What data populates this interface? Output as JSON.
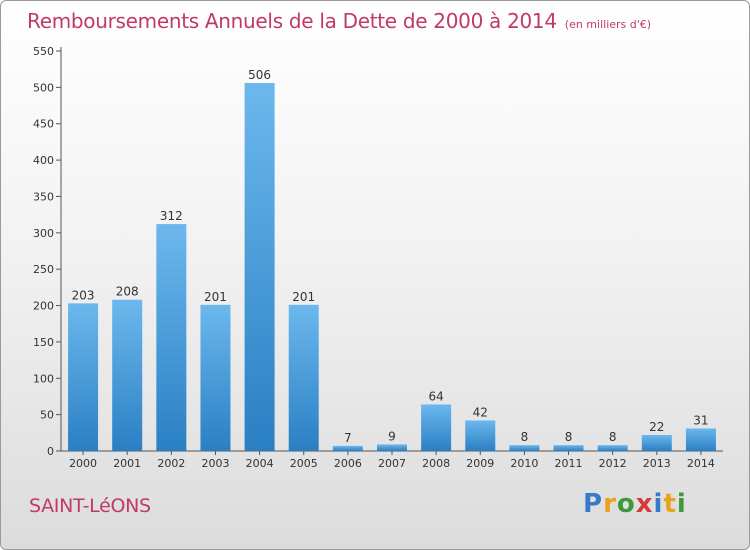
{
  "chart_title": "Remboursements Annuels de la Dette de 2000 à 2014",
  "unit_label": "(en milliers d'€)",
  "commune": "SAINT-LéONS",
  "brand": {
    "text": "Proxiti",
    "letter_colors": [
      "#3a78c8",
      "#e8a21e",
      "#3b9b3b",
      "#d23c3c",
      "#3a78c8",
      "#e8a21e",
      "#3b9b3b"
    ]
  },
  "colors": {
    "accent": "#c0396b",
    "bar_top": "#6cb8ee",
    "bar_bottom": "#2a7fc3"
  },
  "chart_data": {
    "type": "bar",
    "title": "Remboursements Annuels de la Dette de 2000 à 2014",
    "categories": [
      "2000",
      "2001",
      "2002",
      "2003",
      "2004",
      "2005",
      "2006",
      "2007",
      "2008",
      "2009",
      "2010",
      "2011",
      "2012",
      "2013",
      "2014"
    ],
    "values": [
      203,
      208,
      312,
      201,
      506,
      201,
      7,
      9,
      64,
      42,
      8,
      8,
      8,
      22,
      31
    ],
    "ylim": [
      0,
      550
    ],
    "yticks": [
      0,
      50,
      100,
      150,
      200,
      250,
      300,
      350,
      400,
      450,
      500,
      550
    ],
    "grid": false,
    "legend": "none"
  }
}
